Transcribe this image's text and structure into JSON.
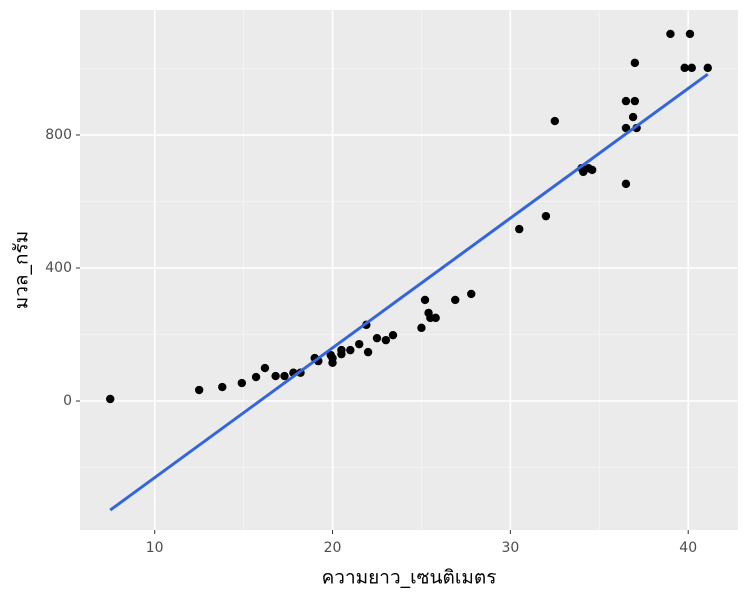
{
  "chart_data": {
    "type": "scatter",
    "x_label": "ความยาว_เซนติเมตร",
    "y_label": "มวล_กรัม",
    "x": [
      7.5,
      12.5,
      13.8,
      14.9,
      15.7,
      16.2,
      16.8,
      17.3,
      17.8,
      18.2,
      19.0,
      19.2,
      20.0,
      20.0,
      19.9,
      20.5,
      20.5,
      21.0,
      21.5,
      21.9,
      22.0,
      22.5,
      23.0,
      23.4,
      25.0,
      25.2,
      25.4,
      25.5,
      25.8,
      26.9,
      27.8,
      30.5,
      32.0,
      32.5,
      34.0,
      34.1,
      34.4,
      34.6,
      36.5,
      36.5,
      36.5,
      36.9,
      37.0,
      37.0,
      37.1,
      39.0,
      39.8,
      40.1,
      40.2,
      41.1
    ],
    "values": [
      6,
      33,
      42,
      54,
      72,
      99,
      75,
      75,
      85,
      85,
      129,
      120,
      129,
      115,
      138,
      141,
      153,
      153,
      171,
      229,
      147,
      189,
      183,
      198,
      220,
      304,
      265,
      250,
      250,
      304,
      322,
      517,
      556,
      842,
      700,
      689,
      700,
      695,
      653,
      902,
      821,
      854,
      902,
      1017,
      821,
      1104,
      1002,
      1104,
      1002,
      1002
    ],
    "color": "#000000",
    "fit_line": {
      "x": [
        7.5,
        41.1
      ],
      "values": [
        -328,
        983
      ],
      "color": "#3366dd"
    },
    "xlim": [
      5.8,
      42.8
    ],
    "ylim": [
      -388,
      1176
    ],
    "xticks": [
      10,
      20,
      30,
      40
    ],
    "yticks": [
      0,
      400,
      800
    ],
    "x_minor_grid": [
      15,
      25,
      35
    ],
    "y_minor_grid": [
      -200,
      200,
      600,
      1000
    ],
    "grid": true
  }
}
